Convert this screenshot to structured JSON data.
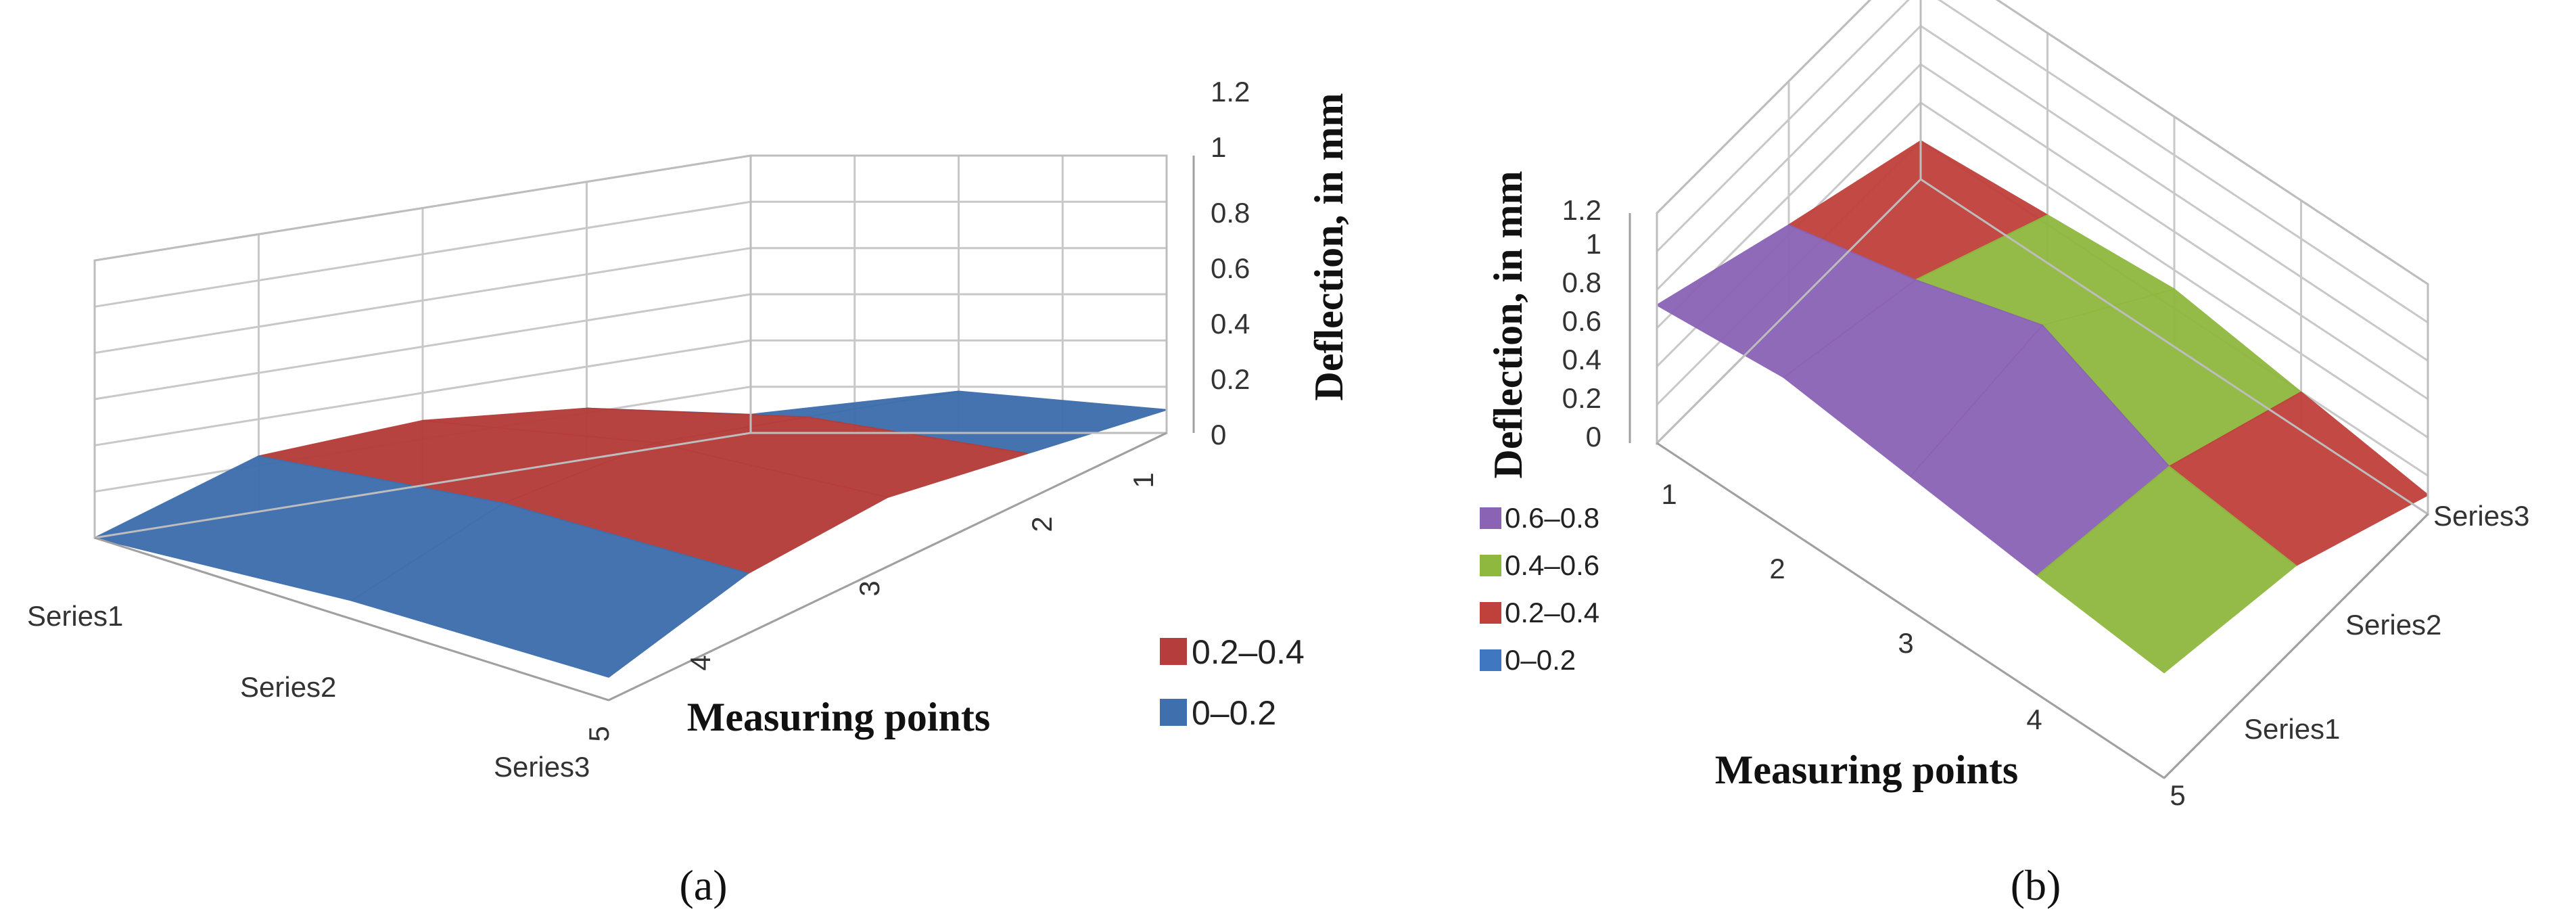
{
  "chart_data": [
    {
      "panel": "a",
      "panel_label": "(a)",
      "type": "surface",
      "x_title": "Measuring points",
      "x_ticks": [
        "1",
        "2",
        "3",
        "4",
        "5"
      ],
      "series_ticks": [
        "Series1",
        "Series2",
        "Series3"
      ],
      "z_title": "Deflection, in mm",
      "z_ticks": [
        "0",
        "0.2",
        "0.4",
        "0.6",
        "0.8",
        "1",
        "1.2"
      ],
      "zlim": [
        0,
        1.2
      ],
      "legend": [
        {
          "label": "0.2–0.4",
          "color": "#b53d3b"
        },
        {
          "label": "0–0.2",
          "color": "#3f6fad"
        }
      ],
      "legend_position": "right",
      "grid": true,
      "z_values": {
        "Series1": [
          0.08,
          0.22,
          0.28,
          0.24,
          0.0
        ],
        "Series2": [
          0.18,
          0.27,
          0.36,
          0.3,
          0.08
        ],
        "Series3": [
          0.1,
          0.2,
          0.3,
          0.26,
          0.1
        ]
      }
    },
    {
      "panel": "b",
      "panel_label": "(b)",
      "type": "surface",
      "x_title": "Measuring points",
      "x_ticks": [
        "1",
        "2",
        "3",
        "4",
        "5"
      ],
      "series_ticks": [
        "Series1",
        "Series2",
        "Series3"
      ],
      "z_title": "Deflection, in mm",
      "z_ticks": [
        "0",
        "0.2",
        "0.4",
        "0.6",
        "0.8",
        "1",
        "1.2"
      ],
      "zlim": [
        0,
        1.2
      ],
      "legend": [
        {
          "label": "0.6–0.8",
          "color": "#8a63b5"
        },
        {
          "label": "0.4–0.6",
          "color": "#8fb83f"
        },
        {
          "label": "0.2–0.4",
          "color": "#c0403c"
        },
        {
          "label": "0–0.2",
          "color": "#3f78c0"
        }
      ],
      "legend_position": "left",
      "grid": true,
      "z_values": {
        "Series1": [
          0.72,
          0.78,
          0.7,
          0.62,
          0.55
        ],
        "Series2": [
          0.45,
          0.6,
          0.8,
          0.5,
          0.42
        ],
        "Series3": [
          0.2,
          0.25,
          0.3,
          0.2,
          0.1
        ]
      }
    }
  ]
}
